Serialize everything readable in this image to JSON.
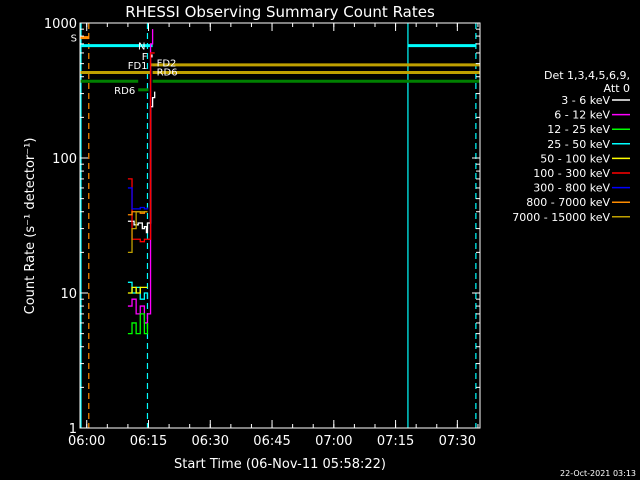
{
  "chart_data": {
    "type": "line",
    "title": "RHESSI Observing Summary Count Rates",
    "xlabel": "Start Time (06-Nov-11 05:58:22)",
    "ylabel": "Count Rate (s⁻¹ detector⁻¹)",
    "y_scale": "log",
    "ylim": [
      1,
      1000
    ],
    "xlim": [
      "05:58:22",
      "07:35:30"
    ],
    "x_ticks": [
      "06:00",
      "06:15",
      "06:30",
      "06:45",
      "07:00",
      "07:15",
      "07:30"
    ],
    "y_ticks": [
      "1",
      "10",
      "100",
      "1000"
    ],
    "grid": false,
    "legend_position": "right",
    "legend_header": [
      "Det 1,3,4,5,6,9,",
      "Att 0"
    ],
    "series": [
      {
        "name": "3 - 6 keV",
        "color": "#ffffff",
        "x": [
          "06:10:00",
          "06:11:30",
          "06:12:30",
          "06:13:30",
          "06:14:00",
          "06:14:30",
          "06:14:45",
          "06:15:30",
          "06:16:00",
          "06:16:30"
        ],
        "values": [
          34,
          32,
          33,
          30,
          31,
          28,
          33,
          240,
          280,
          310
        ]
      },
      {
        "name": "6 - 12 keV",
        "color": "#ff00ff",
        "x": [
          "06:10:00",
          "06:11:00",
          "06:12:00",
          "06:13:00",
          "06:14:00",
          "06:14:45",
          "06:15:30",
          "06:16:00"
        ],
        "values": [
          8,
          9,
          7,
          8,
          6,
          7,
          700,
          900
        ]
      },
      {
        "name": "12 - 25 keV",
        "color": "#00ff00",
        "x": [
          "06:10:00",
          "06:11:00",
          "06:12:00",
          "06:13:00",
          "06:14:00",
          "06:14:45"
        ],
        "values": [
          5,
          6,
          5,
          7,
          5,
          6
        ]
      },
      {
        "name": "25 - 50 keV",
        "color": "#00ffff",
        "x": [
          "06:10:00",
          "06:11:00",
          "06:12:00",
          "06:13:00",
          "06:14:00",
          "06:14:45"
        ],
        "values": [
          12,
          10,
          11,
          9,
          10,
          9
        ]
      },
      {
        "name": "50 - 100 keV",
        "color": "#ffff00",
        "x": [
          "06:10:00",
          "06:11:00",
          "06:12:00",
          "06:13:00",
          "06:14:00",
          "06:14:45"
        ],
        "values": [
          10,
          11,
          10,
          11,
          11,
          11
        ]
      },
      {
        "name": "100 - 300 keV",
        "color": "#ff0000",
        "x": [
          "06:10:00",
          "06:11:00",
          "06:12:00",
          "06:13:00",
          "06:14:00",
          "06:14:45",
          "06:15:30",
          "06:16:30"
        ],
        "values": [
          70,
          25,
          25,
          24,
          25,
          25,
          600,
          600
        ]
      },
      {
        "name": "300 - 800 keV",
        "color": "#0000ff",
        "x": [
          "06:10:00",
          "06:11:00",
          "06:12:00",
          "06:13:00",
          "06:14:00",
          "06:14:45"
        ],
        "values": [
          60,
          42,
          42,
          43,
          42,
          43
        ]
      },
      {
        "name": "800 - 7000 keV",
        "color": "#ff8c00",
        "x": [
          "06:10:00",
          "06:11:00",
          "06:12:00",
          "06:13:00",
          "06:14:00",
          "06:14:45"
        ],
        "values": [
          38,
          40,
          40,
          39,
          40,
          40
        ]
      },
      {
        "name": "7000 - 15000 keV",
        "color": "#bfa000",
        "x": [
          "06:10:00",
          "06:11:00",
          "06:12:00",
          "06:13:00",
          "06:14:00",
          "06:14:45"
        ],
        "values": [
          20,
          30,
          40,
          40,
          40,
          40
        ]
      }
    ],
    "flag_bars": [
      {
        "label": "S",
        "color": "#ff8c00",
        "y": 780,
        "x_start": "05:58:22",
        "x_end": "06:00:30"
      },
      {
        "label": "N",
        "color": "#00ffff",
        "y": 680,
        "x_start": "06:15:00",
        "x_end": "06:16:00"
      },
      {
        "label": "F",
        "color": "#ffffff",
        "y": 570,
        "x_start": "06:15:30",
        "x_end": "06:16:00"
      },
      {
        "label": "FD1",
        "color": "#bfa000",
        "y": 490,
        "x_start": "06:15:30",
        "x_end": "06:16:00"
      },
      {
        "label": "FD2",
        "color": "#bfa000",
        "y": 430,
        "x_start": "06:16:00",
        "x_end": "07:35:30"
      },
      {
        "label": "RD6",
        "color": "#008000",
        "y": 370,
        "x_start": "06:16:00",
        "x_end": "07:35:30"
      },
      {
        "label": "RD6",
        "color": "#008000",
        "y": 320,
        "x_start": "06:12:30",
        "x_end": "06:15:00"
      }
    ],
    "flag_extents": [
      {
        "color": "#00ffff",
        "y": 680,
        "x_start": "05:58:22",
        "x_end": "06:15:00"
      },
      {
        "color": "#00ffff",
        "y": 680,
        "x_start": "07:18:00",
        "x_end": "07:34:30"
      },
      {
        "color": "#bfa000",
        "y": 430,
        "x_start": "05:58:22",
        "x_end": "06:15:30"
      },
      {
        "color": "#bfa000",
        "y": 490,
        "x_start": "06:16:00",
        "x_end": "07:35:30"
      },
      {
        "color": "#008000",
        "y": 370,
        "x_start": "05:58:22",
        "x_end": "06:12:30"
      }
    ],
    "vertical_markers": [
      {
        "x": "05:58:22",
        "color": "#00ffff",
        "style": "solid"
      },
      {
        "x": "06:00:30",
        "color": "#ff8c00",
        "style": "dashed"
      },
      {
        "x": "06:14:45",
        "color": "#00ffff",
        "style": "dashed"
      },
      {
        "x": "07:18:00",
        "color": "#00ffff",
        "style": "solid"
      },
      {
        "x": "07:34:30",
        "color": "#00ffff",
        "style": "dashed"
      }
    ]
  },
  "footer": {
    "timestamp": "22-Oct-2021 03:13"
  }
}
